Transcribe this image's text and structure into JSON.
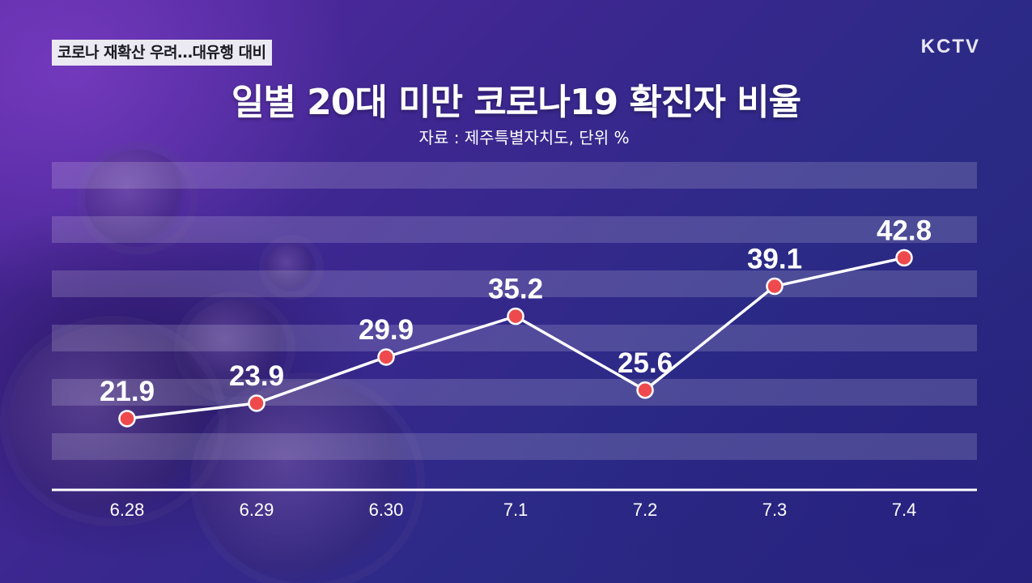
{
  "broadcast": {
    "headline": "코로나 재확산 우려…대유행 대비",
    "logo": "KCTV"
  },
  "chart_data": {
    "type": "line",
    "title": "일별 20대 미만 코로나19 확진자 비율",
    "subtitle": "자료 : 제주특별자치도, 단위 %",
    "categories": [
      "6.28",
      "6.29",
      "6.30",
      "7.1",
      "7.2",
      "7.3",
      "7.4"
    ],
    "values": [
      21.9,
      23.9,
      29.9,
      35.2,
      25.6,
      39.1,
      42.8
    ],
    "value_labels": [
      "21.9",
      "23.9",
      "29.9",
      "35.2",
      "25.6",
      "39.1",
      "42.8"
    ],
    "xlabel": "",
    "ylabel": "",
    "ylim": [
      0,
      50
    ],
    "line_color": "#ffffff",
    "marker_color": "#ee4a4e",
    "grid": true,
    "legend": "none"
  }
}
